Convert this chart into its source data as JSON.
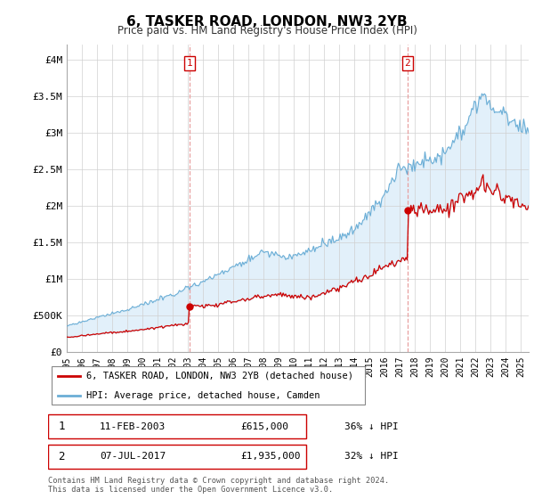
{
  "title": "6, TASKER ROAD, LONDON, NW3 2YB",
  "subtitle": "Price paid vs. HM Land Registry's House Price Index (HPI)",
  "legend_line1": "6, TASKER ROAD, LONDON, NW3 2YB (detached house)",
  "legend_line2": "HPI: Average price, detached house, Camden",
  "annotation1_label": "1",
  "annotation1_date": "11-FEB-2003",
  "annotation1_price": "£615,000",
  "annotation1_hpi": "36% ↓ HPI",
  "annotation1_year": 2003.1,
  "annotation1_value": 615000,
  "annotation2_label": "2",
  "annotation2_date": "07-JUL-2017",
  "annotation2_price": "£1,935,000",
  "annotation2_hpi": "32% ↓ HPI",
  "annotation2_year": 2017.5,
  "annotation2_value": 1935000,
  "footer": "Contains HM Land Registry data © Crown copyright and database right 2024.\nThis data is licensed under the Open Government Licence v3.0.",
  "hpi_color": "#6baed6",
  "hpi_fill_color": "#d6eaf8",
  "price_color": "#cc0000",
  "vline_color": "#e8a0a0",
  "ylim": [
    0,
    4200000
  ],
  "yticks": [
    0,
    500000,
    1000000,
    1500000,
    2000000,
    2500000,
    3000000,
    3500000,
    4000000
  ],
  "ytick_labels": [
    "£0",
    "£500K",
    "£1M",
    "£1.5M",
    "£2M",
    "£2.5M",
    "£3M",
    "£3.5M",
    "£4M"
  ],
  "xmin": 1995.0,
  "xmax": 2025.5
}
